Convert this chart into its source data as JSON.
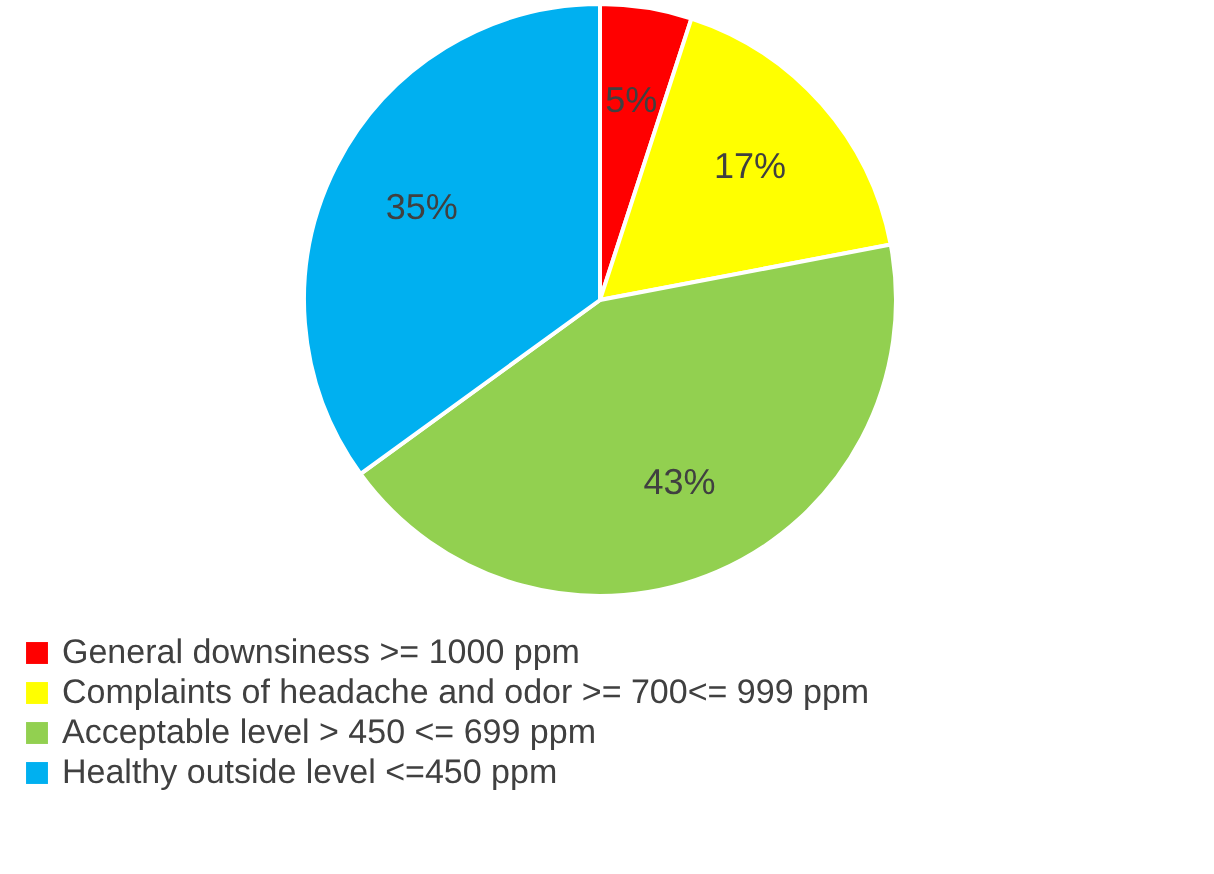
{
  "chart_data": {
    "type": "pie",
    "categories": [
      "General downsiness >= 1000 ppm",
      "Complaints of headache and odor >= 700<= 999 ppm",
      "Acceptable level > 450 <= 699 ppm",
      "Healthy outside level <=450 ppm"
    ],
    "values": [
      5,
      17,
      43,
      35
    ],
    "colors": [
      "#ff0000",
      "#ffff00",
      "#92d050",
      "#00b0f0"
    ],
    "value_labels": [
      "5%",
      "17%",
      "43%",
      "35%"
    ],
    "legend": "bottom left"
  }
}
